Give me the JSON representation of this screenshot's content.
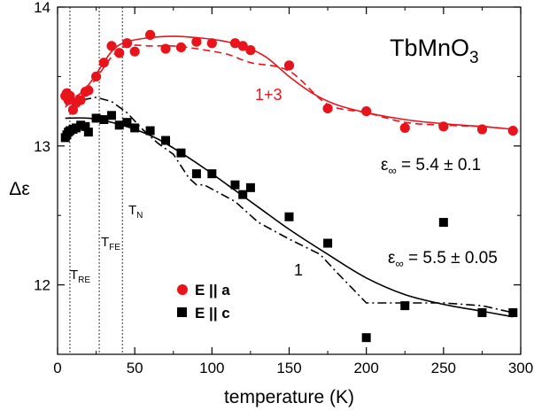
{
  "chart_data": {
    "type": "scatter",
    "xlabel": "temperature (K)",
    "ylabel": "Δε",
    "xlim": [
      0,
      300
    ],
    "ylim": [
      11.5,
      14
    ],
    "x_ticks": [
      "0",
      "50",
      "100",
      "150",
      "200",
      "250",
      "300"
    ],
    "y_ticks": [
      "12",
      "13",
      "14"
    ],
    "grid": false,
    "compound": {
      "base": "TbMnO",
      "sub": "3"
    },
    "legend": {
      "placement": "bottom-left",
      "entries": [
        {
          "label": "E || a",
          "marker": "circle",
          "color": "#e8141c"
        },
        {
          "label": "E || c",
          "marker": "square",
          "color": "#000000"
        }
      ]
    },
    "series": [
      {
        "name": "E || a",
        "marker": "circle",
        "color": "#e8141c",
        "x": [
          5,
          6,
          7,
          8,
          10,
          12,
          15,
          18,
          20,
          25,
          30,
          35,
          40,
          45,
          50,
          60,
          70,
          80,
          90,
          100,
          115,
          120,
          125,
          150,
          175,
          200,
          225,
          250,
          275,
          295
        ],
        "y": [
          13.36,
          13.38,
          13.33,
          13.36,
          13.26,
          13.31,
          13.33,
          13.39,
          13.4,
          13.5,
          13.6,
          13.72,
          13.67,
          13.74,
          13.68,
          13.8,
          13.7,
          13.71,
          13.75,
          13.74,
          13.74,
          13.72,
          13.69,
          13.58,
          13.27,
          13.25,
          13.13,
          13.14,
          13.12,
          13.11
        ]
      },
      {
        "name": "E || c",
        "marker": "square",
        "color": "#000000",
        "x": [
          5,
          6,
          7,
          8,
          10,
          12,
          15,
          18,
          20,
          25,
          30,
          35,
          40,
          45,
          50,
          60,
          70,
          80,
          90,
          100,
          115,
          120,
          125,
          150,
          175,
          200,
          225,
          250,
          275,
          295
        ],
        "y": [
          13.06,
          13.08,
          13.1,
          13.11,
          13.12,
          13.13,
          13.15,
          13.14,
          13.1,
          13.2,
          13.19,
          13.22,
          13.15,
          13.17,
          13.13,
          13.11,
          13.04,
          12.95,
          12.8,
          12.8,
          12.72,
          12.65,
          12.7,
          12.49,
          12.3,
          11.62,
          11.85,
          12.45,
          11.8,
          11.8
        ]
      }
    ],
    "fits": [
      {
        "series": "E || a",
        "style": "solid",
        "color": "#e8141c",
        "x": [
          5,
          20,
          35,
          45,
          60,
          75,
          90,
          105,
          120,
          135,
          150,
          165,
          180,
          200,
          225,
          250,
          275,
          295
        ],
        "y": [
          13.28,
          13.44,
          13.68,
          13.75,
          13.78,
          13.79,
          13.78,
          13.76,
          13.72,
          13.64,
          13.5,
          13.38,
          13.3,
          13.24,
          13.19,
          13.16,
          13.14,
          13.12
        ]
      },
      {
        "series": "E || a",
        "style": "dashed",
        "color": "#e8141c",
        "x": [
          5,
          20,
          35,
          45,
          60,
          75,
          90,
          110,
          125,
          150,
          175,
          200,
          225,
          250,
          275,
          295
        ],
        "y": [
          13.32,
          13.42,
          13.64,
          13.72,
          13.72,
          13.72,
          13.7,
          13.66,
          13.6,
          13.54,
          13.3,
          13.24,
          13.17,
          13.15,
          13.14,
          13.12
        ]
      },
      {
        "series": "E || c",
        "style": "solid",
        "color": "#000000",
        "x": [
          5,
          20,
          35,
          50,
          65,
          80,
          95,
          110,
          130,
          150,
          175,
          200,
          225,
          250,
          275,
          295
        ],
        "y": [
          13.2,
          13.2,
          13.17,
          13.12,
          13.05,
          12.95,
          12.84,
          12.72,
          12.56,
          12.4,
          12.22,
          12.05,
          11.93,
          11.86,
          11.81,
          11.77
        ]
      },
      {
        "series": "E || c",
        "style": "dashdot",
        "color": "#000000",
        "x": [
          5,
          15,
          25,
          35,
          45,
          55,
          65,
          75,
          85,
          90,
          95,
          105,
          115,
          130,
          150,
          170,
          180,
          200,
          225,
          250,
          275,
          295
        ],
        "y": [
          13.3,
          13.33,
          13.35,
          13.32,
          13.24,
          13.12,
          13.02,
          12.94,
          12.77,
          12.72,
          12.72,
          12.66,
          12.6,
          12.45,
          12.33,
          12.22,
          12.1,
          11.87,
          11.87,
          11.87,
          11.85,
          11.8
        ]
      }
    ],
    "transitions": [
      {
        "name": "T_RE",
        "label_main": "T",
        "label_sub": "RE",
        "x": 8
      },
      {
        "name": "T_FE",
        "label_main": "T",
        "label_sub": "FE",
        "x": 27
      },
      {
        "name": "T_N",
        "label_main": "T",
        "label_sub": "N",
        "x": 42
      }
    ],
    "annotations": {
      "fit_label_a": "1+3",
      "fit_label_c": "1",
      "eps_a": {
        "symbol": "ε",
        "sub": "∞",
        "text": " = 5.4 ± 0.1"
      },
      "eps_c": {
        "symbol": "ε",
        "sub": "∞",
        "text": " = 5.5 ± 0.05"
      }
    }
  }
}
